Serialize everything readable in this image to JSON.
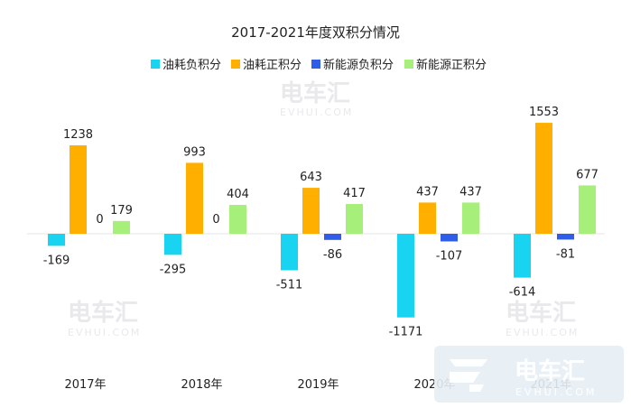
{
  "chart_data": {
    "type": "bar",
    "title": "2017-2021年度双积分情况",
    "categories": [
      "2017年",
      "2018年",
      "2019年",
      "2020年",
      "2021年"
    ],
    "series": [
      {
        "name": "油耗负积分",
        "color": "#19d4f0",
        "values": [
          -169,
          -295,
          -511,
          -1171,
          -614
        ]
      },
      {
        "name": "油耗正积分",
        "color": "#ffaf00",
        "values": [
          1238,
          993,
          643,
          437,
          1553
        ]
      },
      {
        "name": "新能源负积分",
        "color": "#2f5de8",
        "values": [
          0,
          0,
          -86,
          -107,
          -81
        ]
      },
      {
        "name": "新能源正积分",
        "color": "#a6ef7a",
        "values": [
          179,
          404,
          417,
          437,
          677
        ]
      }
    ],
    "labels": [
      [
        "-169",
        "1238",
        "0",
        "179"
      ],
      [
        "-295",
        "993",
        "0",
        "404"
      ],
      [
        "-511",
        "643",
        "-86",
        "417"
      ],
      [
        "-1171",
        "437",
        "-107",
        "437"
      ],
      [
        "-614",
        "1553",
        "-81",
        "677"
      ]
    ],
    "ylim": [
      -1171,
      1553
    ],
    "legend_position": "top",
    "grid": false
  },
  "watermark": {
    "brand": "电车汇",
    "domain": "EVHUI.COM"
  }
}
